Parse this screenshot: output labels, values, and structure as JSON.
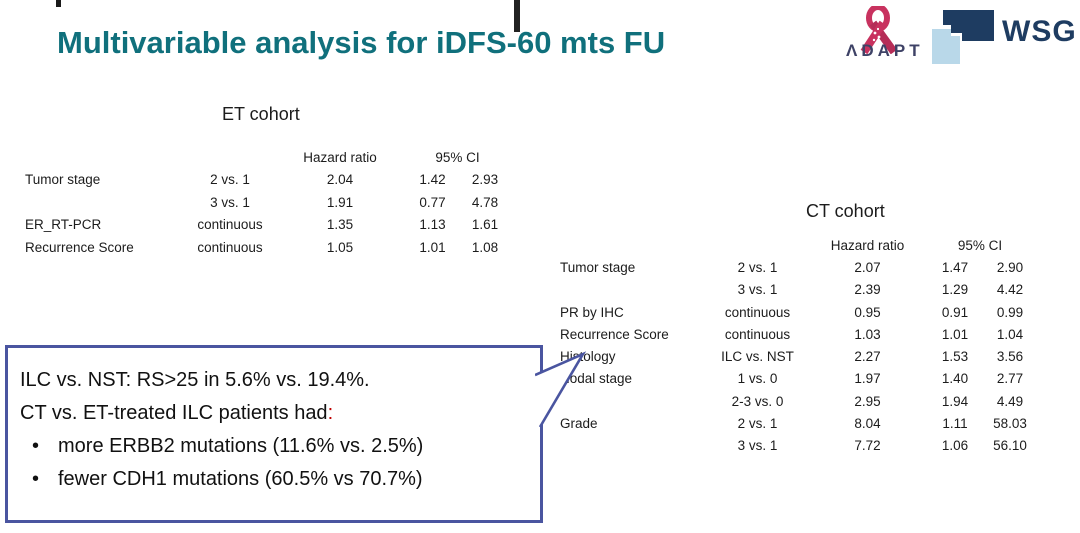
{
  "slide": {
    "title": "Multivariable analysis for iDFS-60 mts FU"
  },
  "logos": {
    "adapt": {
      "text": "ΛDAPT"
    },
    "wsg": {
      "text": "WSG"
    }
  },
  "colors": {
    "title_teal": "#10707c",
    "callout_border": "#4a55a0",
    "accent_red": "#c00000",
    "adapt_ribbon_pink": "#c8325f",
    "adapt_navy": "#3e4266",
    "wsg_dark_blue": "#1e3c61",
    "wsg_light_blue": "#b9d8e9",
    "text_black": "#1c1c1c"
  },
  "tables": [
    {
      "title": "ET cohort",
      "headers": {
        "hazard_ratio": "Hazard ratio",
        "ci": "95% CI"
      },
      "rows": [
        {
          "label": "Tumor stage",
          "comparison": "2 vs. 1",
          "hr": "2.04",
          "ci_low": "1.42",
          "ci_high": "2.93"
        },
        {
          "label": "",
          "comparison": "3 vs. 1",
          "hr": "1.91",
          "ci_low": "0.77",
          "ci_high": "4.78"
        },
        {
          "label": "ER_RT-PCR",
          "comparison": "continuous",
          "hr": "1.35",
          "ci_low": "1.13",
          "ci_high": "1.61"
        },
        {
          "label": "Recurrence Score",
          "comparison": "continuous",
          "hr": "1.05",
          "ci_low": "1.01",
          "ci_high": "1.08"
        }
      ]
    },
    {
      "title": "CT cohort",
      "headers": {
        "hazard_ratio": "Hazard ratio",
        "ci": "95% CI"
      },
      "rows": [
        {
          "label": "Tumor stage",
          "comparison": "2 vs. 1",
          "hr": "2.07",
          "ci_low": "1.47",
          "ci_high": "2.90"
        },
        {
          "label": "",
          "comparison": "3 vs. 1",
          "hr": "2.39",
          "ci_low": "1.29",
          "ci_high": "4.42"
        },
        {
          "label": "PR by IHC",
          "comparison": "continuous",
          "hr": "0.95",
          "ci_low": "0.91",
          "ci_high": "0.99"
        },
        {
          "label": "Recurrence Score",
          "comparison": "continuous",
          "hr": "1.03",
          "ci_low": "1.01",
          "ci_high": "1.04"
        },
        {
          "label": "Histology",
          "comparison": "ILC vs. NST",
          "hr": "2.27",
          "ci_low": "1.53",
          "ci_high": "3.56"
        },
        {
          "label": "Nodal stage",
          "comparison": "1 vs. 0",
          "hr": "1.97",
          "ci_low": "1.40",
          "ci_high": "2.77"
        },
        {
          "label": "",
          "comparison": "2-3 vs. 0",
          "hr": "2.95",
          "ci_low": "1.94",
          "ci_high": "4.49"
        },
        {
          "label": "Grade",
          "comparison": "2 vs. 1",
          "hr": "8.04",
          "ci_low": "1.11",
          "ci_high": "58.03"
        },
        {
          "label": "",
          "comparison": "3 vs. 1",
          "hr": "7.72",
          "ci_low": "1.06",
          "ci_high": "56.10"
        }
      ]
    }
  ],
  "callout": {
    "line1": "ILC vs. NST: RS>25 in 5.6% vs. 19.4%.",
    "line2": "CT vs. ET-treated ILC patients had",
    "line2_colon": ":",
    "bullet_char": "•",
    "bullets": [
      "more ERBB2 mutations (11.6% vs. 2.5%)",
      "fewer CDH1 mutations (60.5% vs 70.7%)"
    ]
  }
}
